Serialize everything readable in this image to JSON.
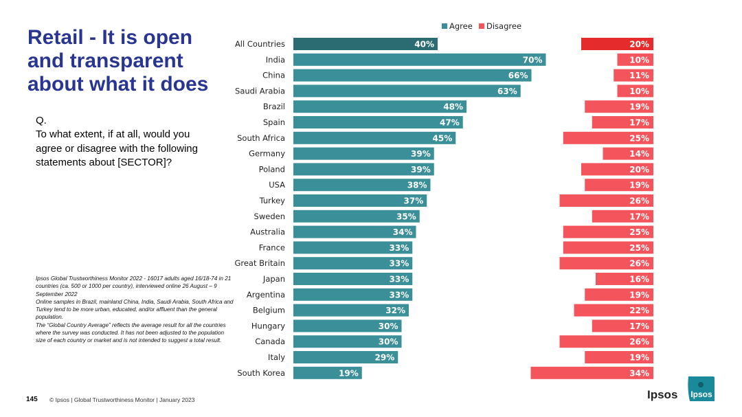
{
  "slide": {
    "title": "Retail - It is open and transparent about what it does",
    "q_label": "Q.",
    "question": "To what extent, if at all, would you agree or disagree with the following statements about [SECTOR]?",
    "footnote": [
      "Ipsos Global Trustworthiness Monitor 2022 - 16017 adults aged 16/18-74 in 21 countries (ca. 500 or 1000 per country), interviewed online 26 August – 9 September 2022",
      "Online samples in Brazil, mainland China, India, Saudi Arabia, South Africa and Turkey tend to be more urban, educated, and/or affluent than the general population.",
      "The “Global Country Average” reflects the average result for all the countries where the survey was conducted. It has not been adjusted to the population size of each country or market and is not intended to suggest a total result."
    ],
    "page_number": "145",
    "footer": "© Ipsos | Global Trustworthiness Monitor | January 2023",
    "brand_word": "Ipsos",
    "logo_text": "Ipsos"
  },
  "colors": {
    "title": "#283593",
    "agree": "#3a8f98",
    "agree_highlight": "#2b6c73",
    "disagree": "#f4555c",
    "disagree_highlight": "#e52b2b",
    "logo": "#1a8a9a"
  },
  "chart_data": {
    "type": "bar",
    "orientation": "horizontal",
    "legend_position": "top",
    "categories": [
      "All Countries",
      "India",
      "China",
      "Saudi Arabia",
      "Brazil",
      "Spain",
      "South Africa",
      "Germany",
      "Poland",
      "USA",
      "Turkey",
      "Sweden",
      "Australia",
      "France",
      "Great Britain",
      "Japan",
      "Argentina",
      "Belgium",
      "Hungary",
      "Canada",
      "Italy",
      "South Korea"
    ],
    "series": [
      {
        "name": "Agree",
        "values": [
          40,
          70,
          66,
          63,
          48,
          47,
          45,
          39,
          39,
          38,
          37,
          35,
          34,
          33,
          33,
          33,
          33,
          32,
          30,
          30,
          29,
          19
        ]
      },
      {
        "name": "Disagree",
        "values": [
          20,
          10,
          11,
          10,
          19,
          17,
          25,
          14,
          20,
          19,
          26,
          17,
          25,
          25,
          26,
          16,
          19,
          22,
          17,
          26,
          19,
          34
        ]
      }
    ],
    "value_suffix": "%",
    "highlight_category": "All Countries"
  }
}
